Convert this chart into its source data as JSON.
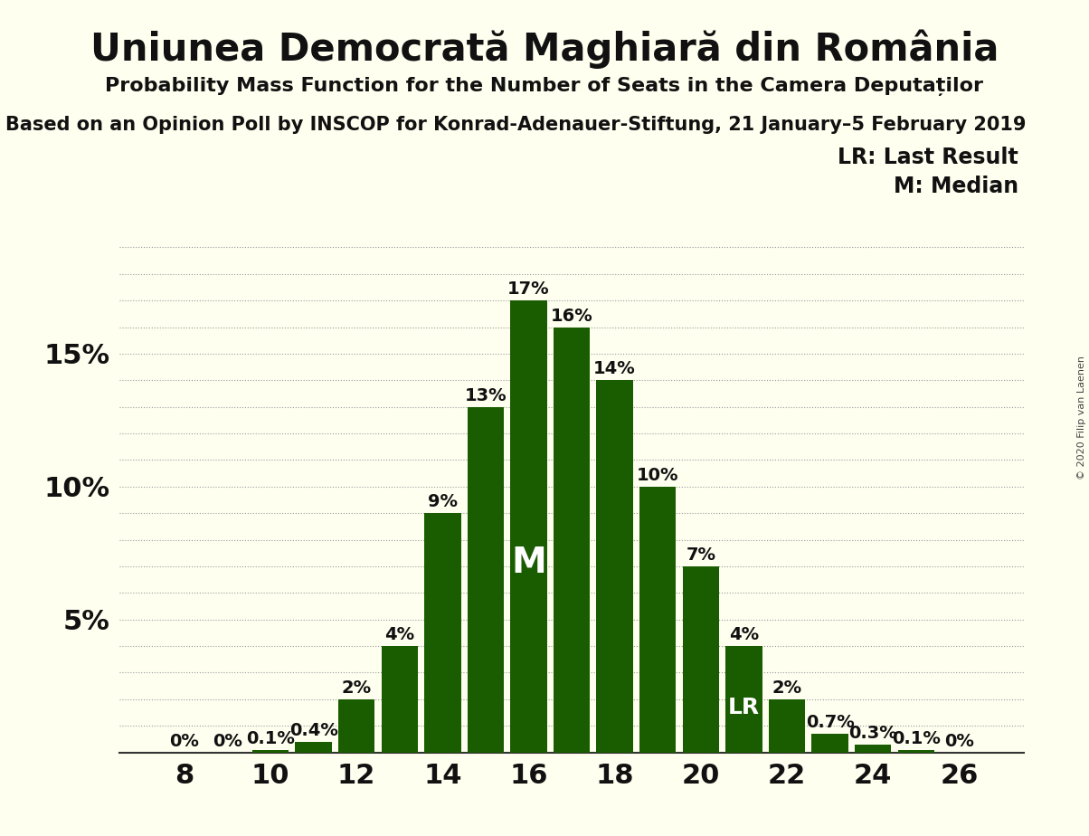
{
  "title": "Uniunea Democrată Maghiară din România",
  "subtitle": "Probability Mass Function for the Number of Seats in the Camera Deputaților",
  "source_line": "Based on an Opinion Poll by INSCOP for Konrad-Adenauer-Stiftung, 21 January–5 February 2019",
  "copyright": "© 2020 Filip van Laenen",
  "seats": [
    8,
    9,
    10,
    11,
    12,
    13,
    14,
    15,
    16,
    17,
    18,
    19,
    20,
    21,
    22,
    23,
    24,
    25,
    26
  ],
  "probabilities": [
    0.0,
    0.0,
    0.1,
    0.4,
    2.0,
    4.0,
    9.0,
    13.0,
    17.0,
    16.0,
    14.0,
    10.0,
    7.0,
    4.0,
    2.0,
    0.7,
    0.3,
    0.1,
    0.0
  ],
  "bar_color": "#1a5c00",
  "background_color": "#fffff0",
  "median_seat": 16,
  "lr_seat": 21,
  "legend_lr": "LR: Last Result",
  "legend_m": "M: Median",
  "xtick_positions": [
    8,
    10,
    12,
    14,
    16,
    18,
    20,
    22,
    24,
    26
  ],
  "title_fontsize": 30,
  "subtitle_fontsize": 16,
  "source_fontsize": 15,
  "axis_tick_fontsize": 22,
  "bar_label_fontsize": 14,
  "legend_fontsize": 17,
  "bar_labels": [
    "0%",
    "0%",
    "0.1%",
    "0.4%",
    "2%",
    "4%",
    "9%",
    "13%",
    "17%",
    "16%",
    "14%",
    "10%",
    "7%",
    "4%",
    "2%",
    "0.7%",
    "0.3%",
    "0.1%",
    "0%"
  ]
}
